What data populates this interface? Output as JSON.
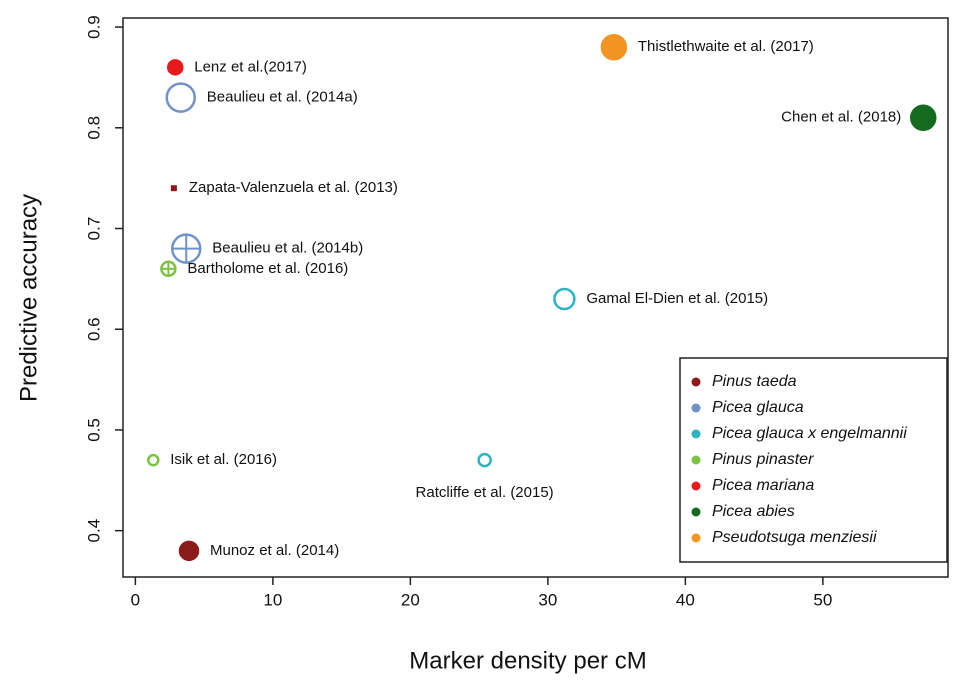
{
  "chart_data": {
    "type": "scatter",
    "x_label": "Marker density per cM",
    "y_label": "Predictive accuracy",
    "xlim": [
      -0.9,
      59.1
    ],
    "ylim": [
      0.354,
      0.909
    ],
    "xticks": [
      0,
      10,
      20,
      30,
      40,
      50
    ],
    "yticks": [
      0.4,
      0.5,
      0.6,
      0.7,
      0.8,
      0.9
    ],
    "legend": "bottom-right",
    "series": [
      {
        "name": "Pinus taeda",
        "color": "#8b1a1a",
        "x": [
          2.8,
          3.9
        ],
        "values": [
          0.74,
          0.38
        ],
        "sizes": [
          3,
          9
        ],
        "markers": [
          "square",
          "filled"
        ],
        "labels": [
          "Zapata-Valenzuela et al. (2013)",
          "Munoz et al. (2014)"
        ]
      },
      {
        "name": "Picea glauca",
        "color": "#6f93c8",
        "x": [
          3.3,
          3.7
        ],
        "values": [
          0.83,
          0.68
        ],
        "sizes": [
          14,
          14
        ],
        "markers": [
          "open",
          "crossed"
        ],
        "labels": [
          "Beaulieu et al. (2014a)",
          "Beaulieu et al. (2014b)"
        ]
      },
      {
        "name": "Picea glauca x engelmannii",
        "color": "#2bb5c0",
        "x": [
          31.2,
          25.4
        ],
        "values": [
          0.63,
          0.47
        ],
        "sizes": [
          10,
          6
        ],
        "markers": [
          "open",
          "open"
        ],
        "labels": [
          "Gamal El-Dien et al. (2015)",
          "Ratcliffe et al. (2015)"
        ]
      },
      {
        "name": "Pinus pinaster",
        "color": "#7cc242",
        "x": [
          2.4,
          1.3
        ],
        "values": [
          0.66,
          0.47
        ],
        "sizes": [
          7,
          5
        ],
        "markers": [
          "crossed",
          "open"
        ],
        "labels": [
          "Bartholome et al. (2016)",
          "Isik et al. (2016)"
        ]
      },
      {
        "name": "Picea mariana",
        "color": "#e8191c",
        "x": [
          2.9
        ],
        "values": [
          0.86
        ],
        "sizes": [
          7
        ],
        "markers": [
          "filled"
        ],
        "labels": [
          "Lenz et al.(2017)"
        ]
      },
      {
        "name": "Picea abies",
        "color": "#146b1e",
        "x": [
          57.3
        ],
        "values": [
          0.81
        ],
        "sizes": [
          12
        ],
        "markers": [
          "filled"
        ],
        "labels": [
          "Chen et al. (2018)"
        ]
      },
      {
        "name": "Pseudotsuga menziesii",
        "color": "#f39422",
        "x": [
          34.8
        ],
        "values": [
          0.88
        ],
        "sizes": [
          12
        ],
        "markers": [
          "filled"
        ],
        "labels": [
          "Thistlethwaite et al. (2017)"
        ]
      }
    ]
  }
}
